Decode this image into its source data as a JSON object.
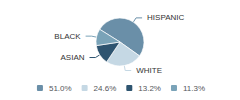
{
  "chart_data": {
    "type": "pie",
    "categories": [
      "HISPANIC",
      "WHITE",
      "ASIAN",
      "BLACK"
    ],
    "values": [
      51.0,
      24.6,
      13.2,
      11.3
    ],
    "value_labels": [
      "51.0%",
      "24.6%",
      "13.2%",
      "11.3%"
    ],
    "colors": [
      "#6a8fa8",
      "#c5d8e4",
      "#2e5470",
      "#7aa3b8"
    ],
    "legend": "bottom"
  }
}
